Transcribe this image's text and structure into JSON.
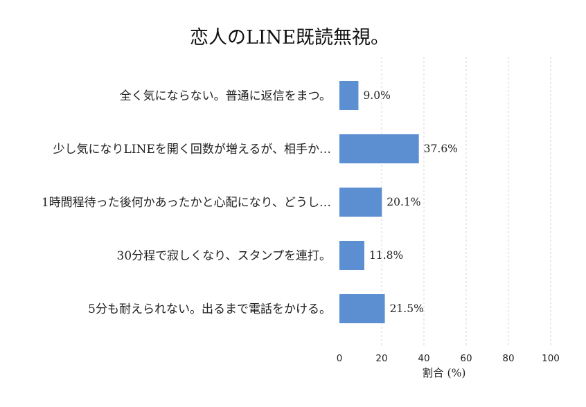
{
  "chart_data": {
    "type": "bar",
    "orientation": "horizontal",
    "title": "恋人のLINE既読無視。",
    "xlabel": "割合 (%)",
    "ylabel": "",
    "xlim": [
      0,
      100
    ],
    "xticks": [
      0,
      20,
      40,
      60,
      80,
      100
    ],
    "grid": "vertical-dashed",
    "categories": [
      "全く気にならない。普通に返信をまつ。",
      "少し気になりLINEを開く回数が増えるが、相手か…",
      "1時間程待った後何かあったかと心配になり、どうし…",
      "30分程で寂しくなり、スタンプを連打。",
      "5分も耐えられない。出るまで電話をかける。"
    ],
    "values": [
      9.0,
      37.6,
      20.1,
      11.8,
      21.5
    ],
    "value_labels": [
      "9.0%",
      "37.6%",
      "20.1%",
      "11.8%",
      "21.5%"
    ],
    "colors": {
      "bar": "#5b8fd1",
      "grid": "#cccccc"
    }
  }
}
